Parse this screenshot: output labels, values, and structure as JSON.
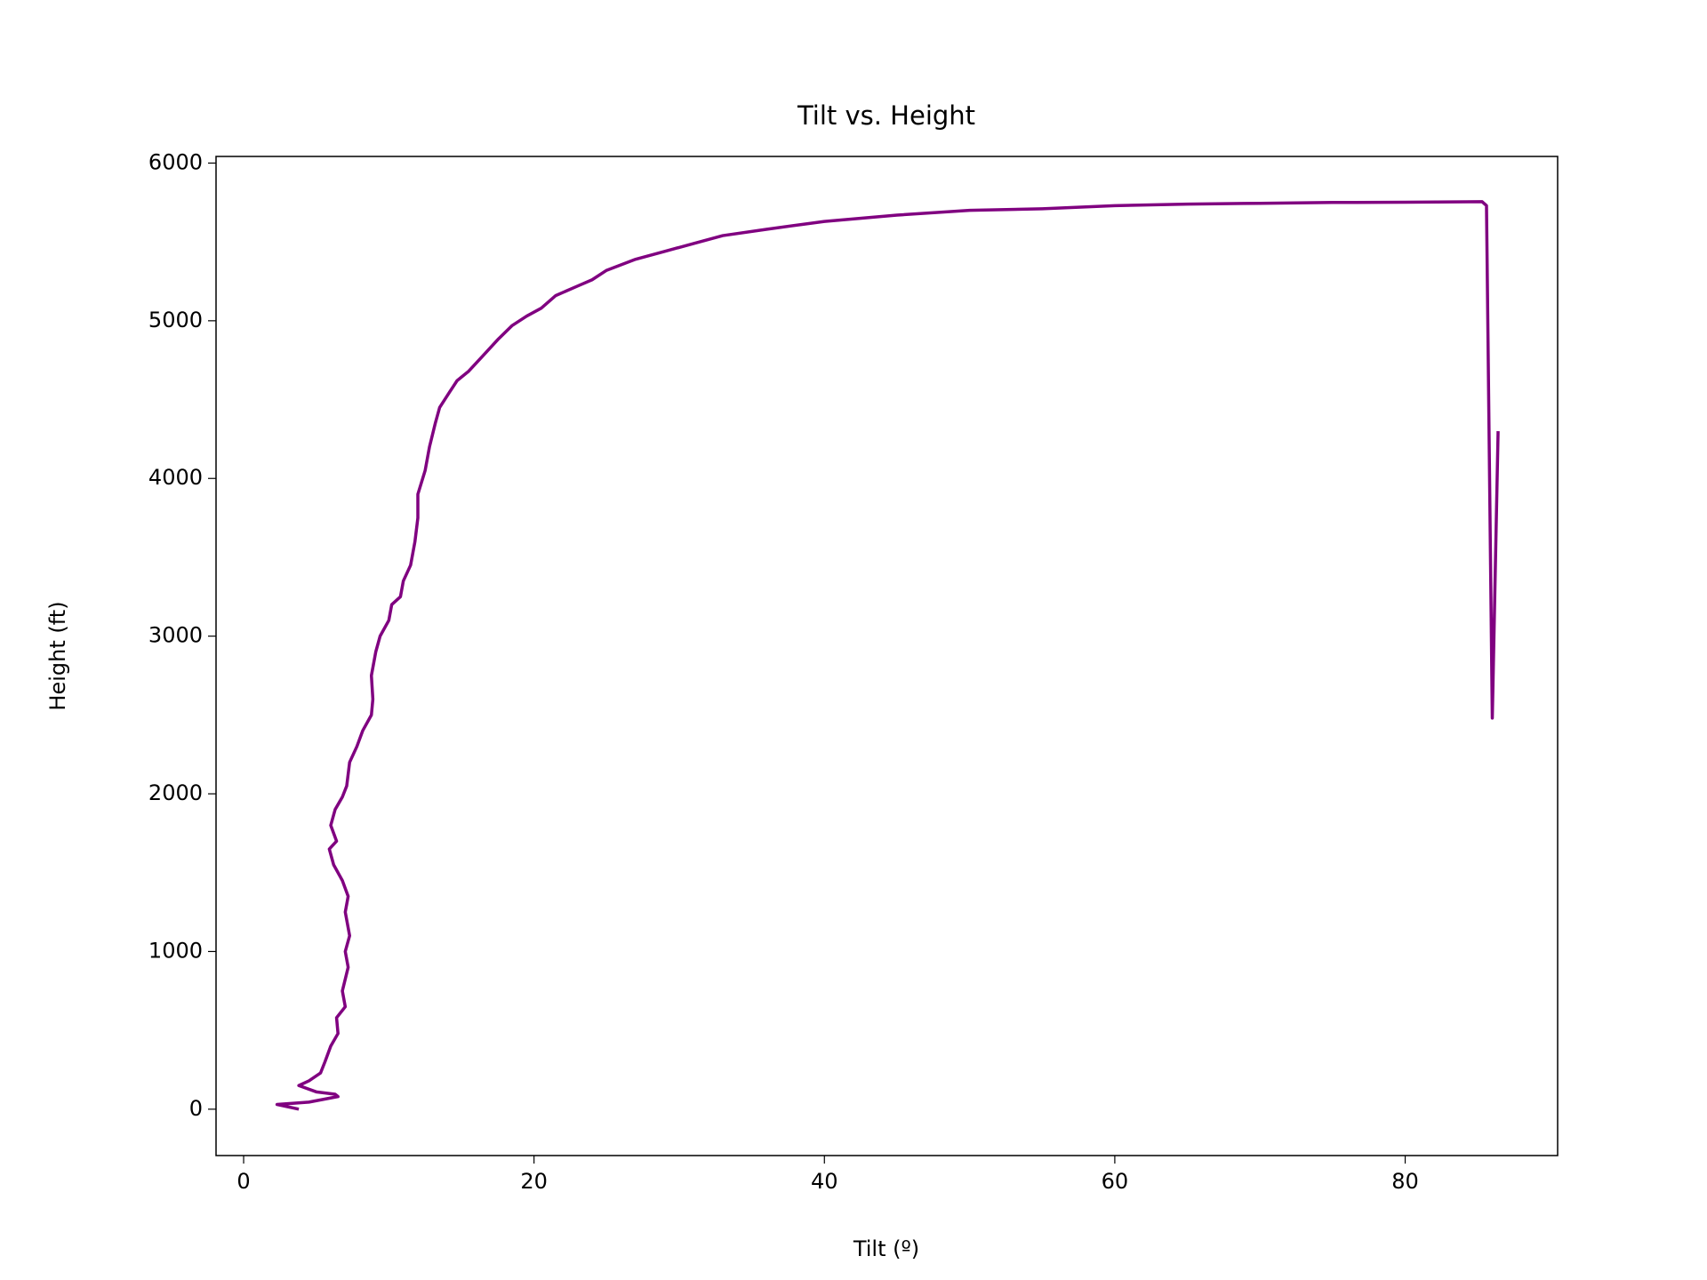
{
  "chart_data": {
    "type": "line",
    "title": "Tilt vs. Height",
    "x_label": "Tilt (º)",
    "y_label": "Height (ft)",
    "x": [
      3.8,
      2.3,
      4.5,
      6.5,
      6.3,
      5.0,
      3.8,
      4.5,
      5.3,
      5.6,
      6.0,
      6.5,
      6.4,
      7.0,
      6.8,
      7.2,
      7.0,
      7.3,
      7.0,
      7.2,
      6.8,
      6.2,
      5.9,
      6.4,
      6.0,
      6.3,
      6.8,
      7.1,
      7.3,
      7.8,
      8.2,
      8.8,
      8.9,
      8.8,
      9.1,
      9.4,
      10.0,
      10.2,
      10.8,
      11.0,
      11.5,
      11.8,
      12.0,
      12.0,
      12.5,
      12.8,
      13.2,
      13.5,
      14.2,
      14.7,
      15.5,
      16.5,
      17.5,
      18.5,
      19.5,
      20.5,
      21.5,
      23.0,
      24.0,
      25.0,
      27.0,
      29.0,
      31.0,
      33.0,
      36,
      40,
      45,
      50,
      55,
      60,
      65,
      70,
      75,
      80,
      85.3,
      85.6,
      86.0,
      86.4
    ],
    "series": [
      {
        "name": "Height",
        "color": "#800080",
        "values": [
          0,
          30,
          45,
          80,
          95,
          110,
          150,
          180,
          230,
          300,
          400,
          480,
          580,
          650,
          750,
          900,
          1000,
          1100,
          1250,
          1350,
          1450,
          1550,
          1650,
          1700,
          1800,
          1900,
          1980,
          2050,
          2200,
          2300,
          2400,
          2500,
          2600,
          2750,
          2900,
          3000,
          3100,
          3200,
          3250,
          3350,
          3450,
          3600,
          3750,
          3900,
          4050,
          4200,
          4350,
          4450,
          4550,
          4620,
          4680,
          4780,
          4880,
          4970,
          5030,
          5080,
          5160,
          5220,
          5260,
          5320,
          5390,
          5440,
          5490,
          5540,
          5580,
          5630,
          5670,
          5700,
          5710,
          5730,
          5740,
          5745,
          5750,
          5752,
          5755,
          5730,
          2480,
          4300
        ]
      }
    ],
    "xlim": [
      -1.9,
      90.5
    ],
    "ylim": [
      -294,
      6042
    ],
    "xticks": [
      0,
      20,
      40,
      60,
      80
    ],
    "yticks": [
      0,
      1000,
      2000,
      3000,
      4000,
      5000,
      6000
    ]
  }
}
